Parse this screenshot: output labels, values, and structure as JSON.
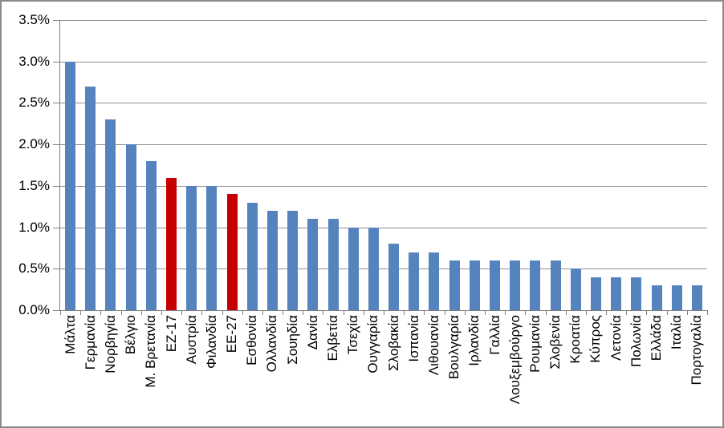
{
  "chart_data": {
    "type": "bar",
    "categories": [
      "Μάλτα",
      "Γερμανία",
      "Νορβηγία",
      "Βέλγιο",
      "Μ. Βρετανία",
      "ΕΖ-17",
      "Αυστρία",
      "Φιλανδία",
      "ΕΕ-27",
      "Εσθονία",
      "Ολλανδία",
      "Σουηδία",
      "Δανία",
      "Ελβετία",
      "Τσεχία",
      "Ουγγαρία",
      "Σλοβακία",
      "Ισπανία",
      "Λιθουανία",
      "Βουλγαρία",
      "Ιρλανδία",
      "Γαλλία",
      "Λουξεμβούργο",
      "Ρουμανία",
      "Σλοβενία",
      "Κροατία",
      "Κύπρος",
      "Λετονία",
      "Πολωνία",
      "Ελλάδα",
      "Ιταλία",
      "Πορτογαλία"
    ],
    "values": [
      3.0,
      2.7,
      2.3,
      2.0,
      1.8,
      1.6,
      1.5,
      1.5,
      1.4,
      1.3,
      1.2,
      1.2,
      1.1,
      1.1,
      1.0,
      1.0,
      0.8,
      0.7,
      0.7,
      0.6,
      0.6,
      0.6,
      0.6,
      0.6,
      0.6,
      0.5,
      0.4,
      0.4,
      0.4,
      0.3,
      0.3,
      0.3
    ],
    "value_unit": "percent",
    "highlighted_indices": [
      5,
      8
    ],
    "ylim": [
      0,
      3.5
    ],
    "ytick_step": 0.5,
    "ytick_labels": [
      "0.0%",
      "0.5%",
      "1.0%",
      "1.5%",
      "2.0%",
      "2.5%",
      "3.0%",
      "3.5%"
    ],
    "grid": true,
    "legend": false,
    "colors": {
      "bar_default": "#5483BE",
      "bar_highlight": "#C60000",
      "gridline": "#909090",
      "axis": "#808080",
      "frame_border": "#8A8A8A",
      "background": "#FFFFFF",
      "text": "#000000"
    }
  }
}
